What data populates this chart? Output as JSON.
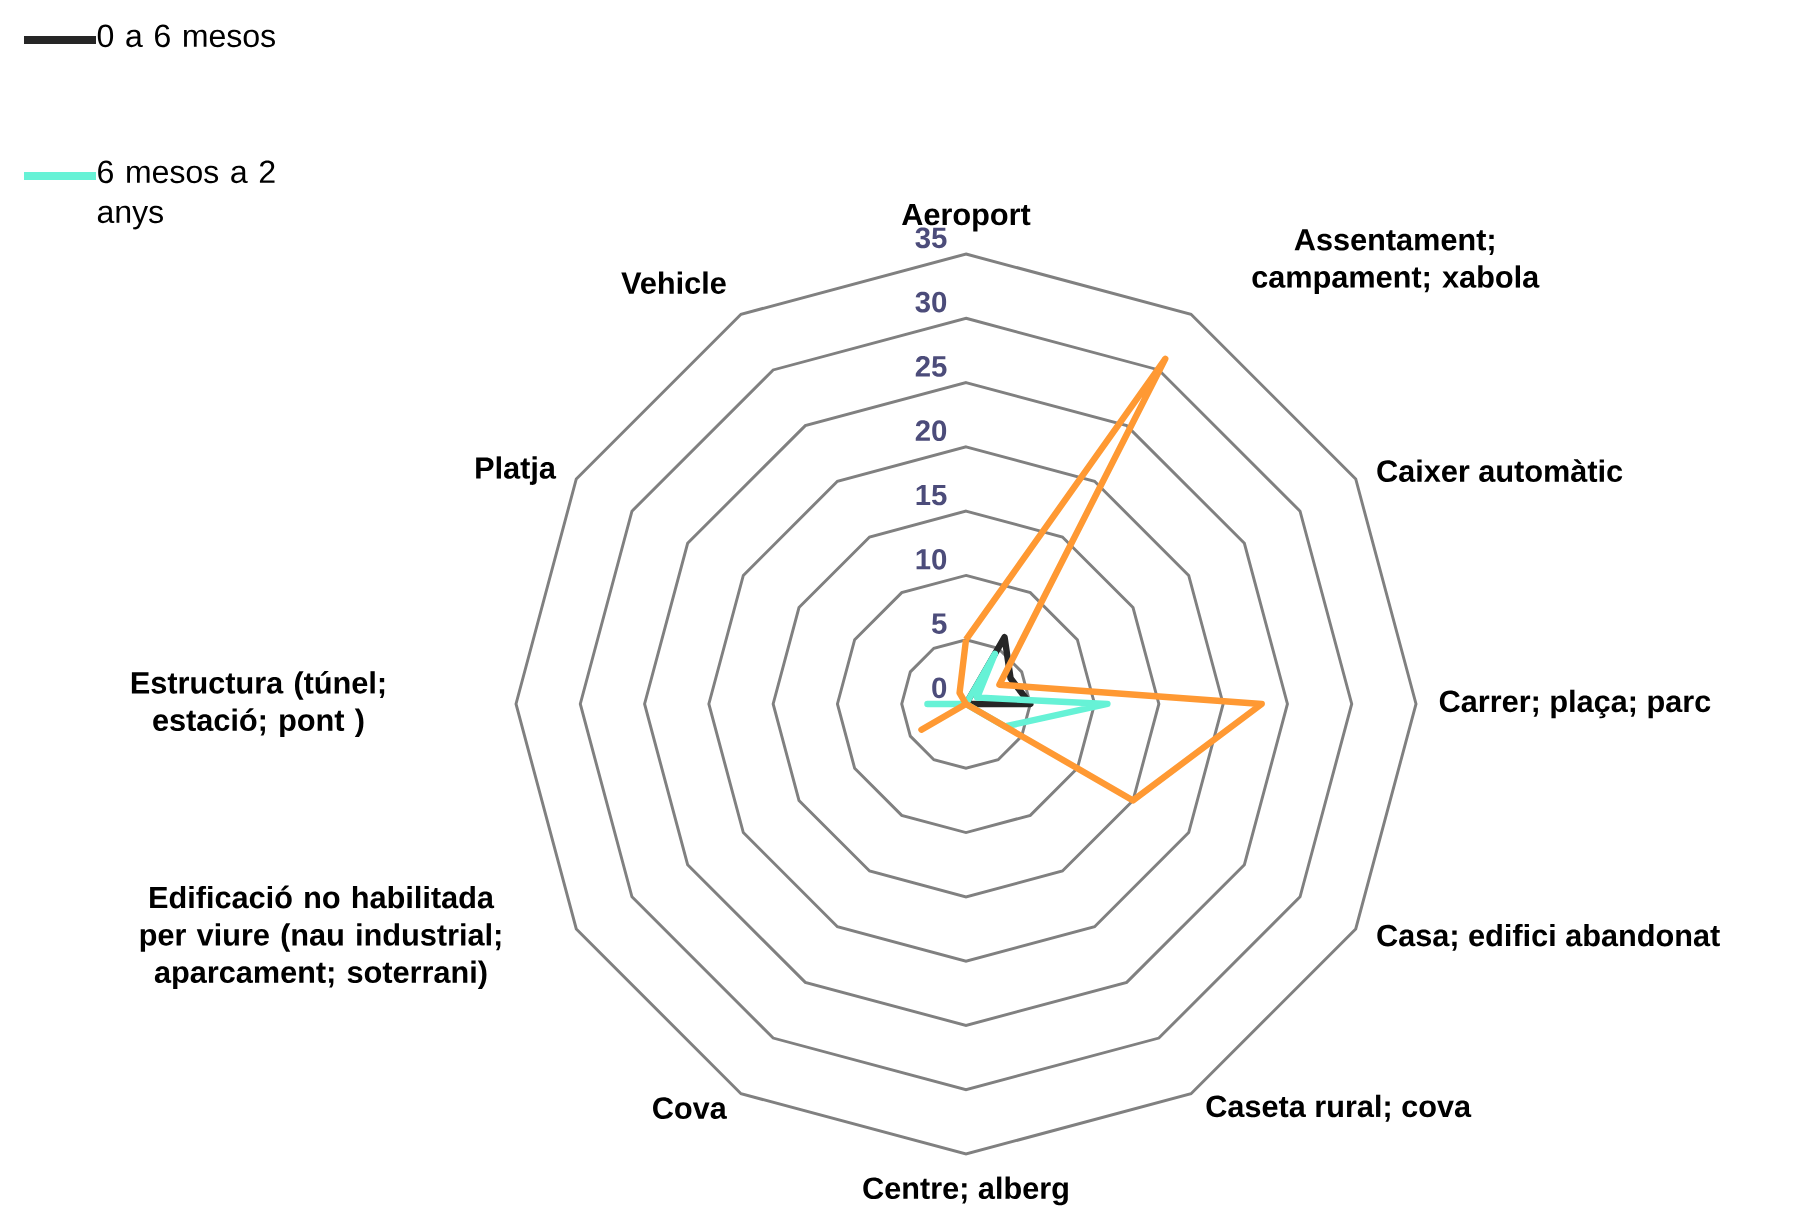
{
  "chart_data": {
    "type": "radar",
    "categories": [
      "Aeroport",
      "Assentament; campament; xabola",
      "Caixer automàtic",
      "Carrer; plaça; parc",
      "Casa; edifici abandonat",
      "Caseta rural; cova",
      "Centre; alberg",
      "Cova",
      "Edificació no habilitada per viure (nau industrial; aparcament; soterrani)",
      "Estructura (túnel; estació; pont )",
      "Platja",
      "Vehicle"
    ],
    "series": [
      {
        "name": "0 a 6 mesos",
        "color": "#262626",
        "values": [
          0,
          6,
          4,
          5,
          0,
          0,
          0,
          0,
          0,
          0,
          0,
          0
        ]
      },
      {
        "name": "6 mesos a 2 anys",
        "color": "#66f2d6",
        "values": [
          0,
          4.5,
          1,
          11,
          3.5,
          0,
          0,
          0,
          0,
          3,
          0,
          0
        ]
      },
      {
        "color": "#ff9933",
        "values": [
          5,
          31,
          3,
          23,
          15,
          0,
          0,
          0,
          4,
          0,
          0,
          1
        ]
      }
    ],
    "ylim": [
      0,
      35
    ],
    "yticks": [
      0,
      5,
      10,
      15,
      20,
      25,
      30,
      35
    ],
    "grid": true,
    "legend": "top left",
    "line_style": "solid"
  }
}
